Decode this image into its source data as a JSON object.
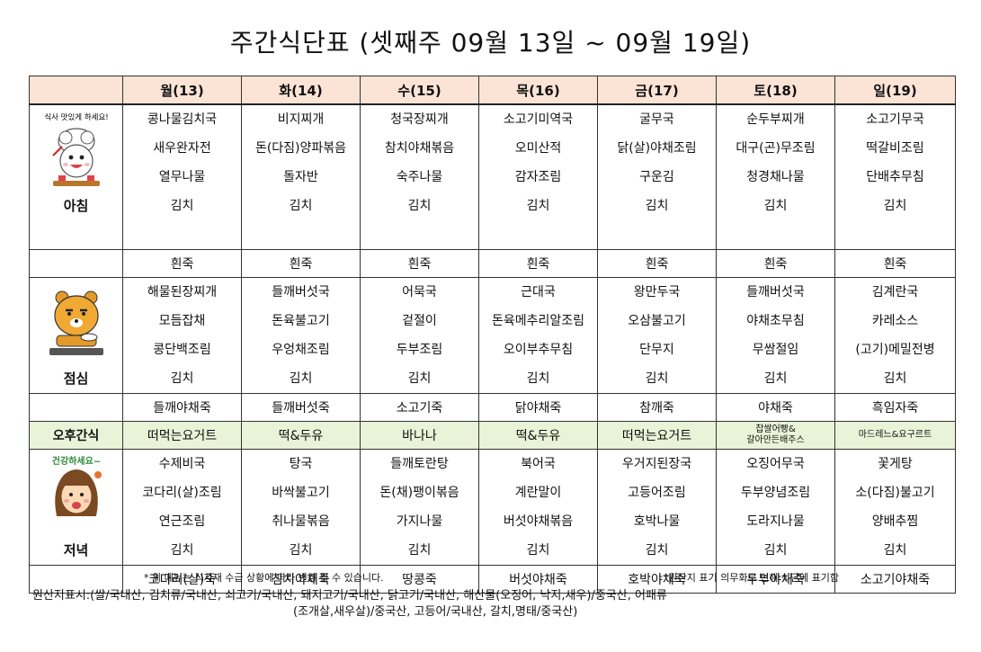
{
  "title": "주간식단표 (셋째주 09월 13일 ~ 09월 19일)",
  "days": [
    "월(13)",
    "화(14)",
    "수(15)",
    "목(16)",
    "금(17)",
    "토(18)",
    "일(19)"
  ],
  "meals": [
    {
      "label": "아침",
      "icon_caption": "식사 맛있게 하세요!",
      "icon": "chef-cartoon-icon",
      "columns": [
        [
          "콩나물김치국",
          "새우완자전",
          "열무나물",
          "김치",
          "흰죽"
        ],
        [
          "비지찌개",
          "돈(다짐)양파볶음",
          "돌자반",
          "김치",
          "흰죽"
        ],
        [
          "청국장찌개",
          "참치야채볶음",
          "숙주나물",
          "김치",
          "흰죽"
        ],
        [
          "소고기미역국",
          "오미산적",
          "감자조림",
          "김치",
          "흰죽"
        ],
        [
          "굴무국",
          "닭(살)야채조림",
          "구운김",
          "김치",
          "흰죽"
        ],
        [
          "순두부찌개",
          "대구(곤)무조림",
          "청경채나물",
          "김치",
          "흰죽"
        ],
        [
          "소고기무국",
          "떡갈비조림",
          "단배추무침",
          "김치",
          "흰죽"
        ]
      ]
    },
    {
      "label": "점심",
      "icon": "lion-eating-icon",
      "columns": [
        [
          "해물된장찌개",
          "모듬잡채",
          "콩단백조림",
          "김치",
          "들깨야채죽"
        ],
        [
          "들깨버섯국",
          "돈육불고기",
          "우엉채조림",
          "김치",
          "들깨버섯죽"
        ],
        [
          "어묵국",
          "겉절이",
          "두부조림",
          "김치",
          "소고기죽"
        ],
        [
          "근대국",
          "돈육메추리알조림",
          "오이부추무침",
          "김치",
          "닭야채죽"
        ],
        [
          "왕만두국",
          "오삼불고기",
          "단무지",
          "김치",
          "참깨죽"
        ],
        [
          "들깨버섯국",
          "야채초무침",
          "무쌈절임",
          "김치",
          "야채죽"
        ],
        [
          "김계란국",
          "카레소스",
          "(고기)메밀전병",
          "김치",
          "흑임자죽"
        ]
      ]
    },
    {
      "label": "저녁",
      "icon": "healthy-girl-icon",
      "icon_caption": "건강하세요~",
      "columns": [
        [
          "수제비국",
          "코다리(살)조림",
          "연근조림",
          "김치",
          "코다리(살)죽"
        ],
        [
          "탕국",
          "바싹불고기",
          "취나물볶음",
          "김치",
          "참치야채죽"
        ],
        [
          "들깨토란탕",
          "돈(채)팽이볶음",
          "가지나물",
          "김치",
          "땅콩죽"
        ],
        [
          "북어국",
          "계란말이",
          "버섯야채볶음",
          "김치",
          "버섯야채죽"
        ],
        [
          "우거지된장국",
          "고등어조림",
          "호박나물",
          "김치",
          "호박야채죽"
        ],
        [
          "오징어무국",
          "두부양념조림",
          "도라지나물",
          "김치",
          "두부야채죽"
        ],
        [
          "꽃게탕",
          "소(다짐)불고기",
          "양배추찜",
          "김치",
          "소고기야채죽"
        ]
      ]
    }
  ],
  "snack": {
    "label": "오후간식",
    "items": [
      "떠먹는요거트",
      "떡&두유",
      "바나나",
      "떡&두유",
      "떠먹는요거트",
      "찹쌀어빵&\n갈아만든배주스",
      "마드레느&요구르트"
    ]
  },
  "notes": {
    "menu_change": "* 위 메뉴는 식자재 수급 상황에 따라 변경 될 수 있습니다.",
    "origin_notice": "*원산지 표기 의무화로 인해 식단에 표기함"
  },
  "origin_line1": "원산지표시:(쌀/국내산, 김치류/국내산, 쇠고기/국내산, 돼지고기/국내산, 닭고기/국내산, 해산물(오징어, 낙지,새우)/중국산, 어패류",
  "origin_line2": "(조개살,새우살)/중국산, 고등어/국내산, 갈치,명태/중국산)",
  "colors": {
    "header_bg": "#fbe4d6",
    "snack_bg": "#e8f3d8"
  }
}
